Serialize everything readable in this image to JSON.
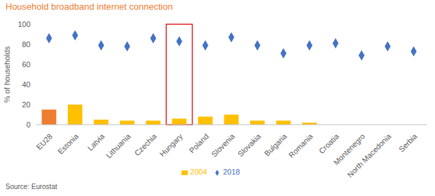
{
  "chart_data": {
    "type": "bar",
    "title": "Household broadband internet connection",
    "y_label": "% of households",
    "source": "Source: Eurostat",
    "categories": [
      "EU28",
      "Estonia",
      "Latvia",
      "Lithuania",
      "Czechia",
      "Hungary",
      "Poland",
      "Slovenia",
      "Slovakia",
      "Bulgaria",
      "Romania",
      "Croatia",
      "Montenegro",
      "North Macedonia",
      "Serbia"
    ],
    "series": [
      {
        "name": "2004",
        "type": "bar",
        "color": "#ffc000",
        "colors": [
          "#ed7d31",
          "#ffc000",
          "#ffc000",
          "#ffc000",
          "#ffc000",
          "#ffc000",
          "#ffc000",
          "#ffc000",
          "#ffc000",
          "#ffc000",
          "#ffc000",
          "#ffc000",
          "#ffc000",
          "#ffc000",
          "#ffc000"
        ],
        "values": [
          15,
          20,
          5,
          4,
          4,
          6,
          8,
          10,
          4,
          4,
          2,
          null,
          null,
          null,
          null
        ]
      },
      {
        "name": "2018",
        "type": "scatter",
        "marker": "diamond",
        "color": "#4472c4",
        "values": [
          86,
          89,
          79,
          78,
          86,
          83,
          79,
          87,
          79,
          71,
          79,
          81,
          69,
          78,
          73
        ]
      }
    ],
    "ylim": [
      0,
      100
    ],
    "yticks": [
      0,
      20,
      40,
      60,
      80,
      100
    ],
    "grid": false,
    "legend": "bottom"
  }
}
